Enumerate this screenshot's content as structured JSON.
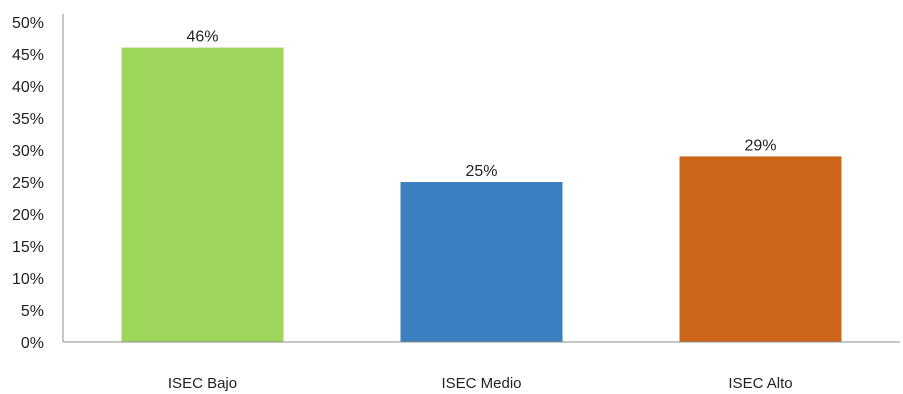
{
  "chart_data": {
    "type": "bar",
    "categories": [
      "ISEC Bajo",
      "ISEC Medio",
      "ISEC Alto"
    ],
    "values": [
      46,
      25,
      29
    ],
    "data_labels": [
      "46%",
      "25%",
      "29%"
    ],
    "colors": [
      "#9ED65C",
      "#3A80C0",
      "#CC6619"
    ],
    "ylim": [
      0,
      50
    ],
    "y_ticks": [
      0,
      5,
      10,
      15,
      20,
      25,
      30,
      35,
      40,
      45,
      50
    ],
    "y_tick_labels": [
      "0%",
      "5%",
      "10%",
      "15%",
      "20%",
      "25%",
      "30%",
      "35%",
      "40%",
      "45%",
      "50%"
    ],
    "grid": false,
    "legend": "none",
    "axis_color": "#8c8c8c"
  }
}
